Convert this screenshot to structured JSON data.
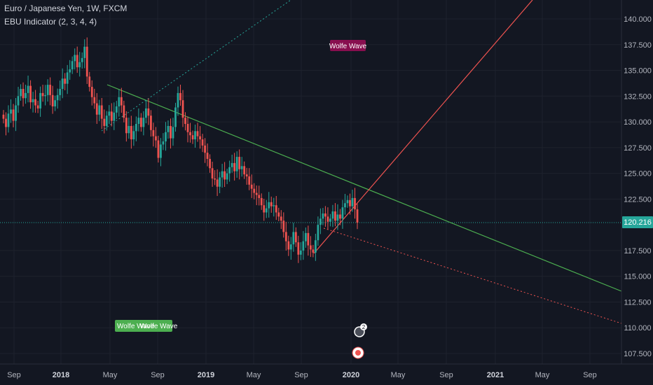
{
  "header": {
    "symbol": "Euro / Japanese Yen, 1W, FXCM",
    "indicator": "EBU Indicator (2, 3, 4, 4)"
  },
  "colors": {
    "background": "#131722",
    "up": "#26a69a",
    "down": "#ef5350",
    "price_line": "#26a69a",
    "green_line": "#4caf50",
    "red_line": "#ef5350",
    "label_red_bg": "#880e4f",
    "label_green_bg": "#4caf50"
  },
  "chart_data": {
    "type": "candlestick",
    "yticks": [
      "140.000",
      "137.500",
      "135.000",
      "132.500",
      "130.000",
      "127.500",
      "125.000",
      "122.500",
      "117.500",
      "115.000",
      "112.500",
      "110.000",
      "107.500"
    ],
    "xticks": [
      {
        "label": "Sep",
        "major": false
      },
      {
        "label": "2018",
        "major": true
      },
      {
        "label": "May",
        "major": false
      },
      {
        "label": "Sep",
        "major": false
      },
      {
        "label": "2019",
        "major": true
      },
      {
        "label": "May",
        "major": false
      },
      {
        "label": "Sep",
        "major": false
      },
      {
        "label": "2020",
        "major": true
      },
      {
        "label": "May",
        "major": false
      },
      {
        "label": "Sep",
        "major": false
      },
      {
        "label": "2021",
        "major": true
      },
      {
        "label": "May",
        "major": false
      },
      {
        "label": "Sep",
        "major": false
      }
    ],
    "last_price": "120.216",
    "ylim": [
      106.5,
      141.5
    ],
    "closes": [
      130.3,
      129.5,
      130.8,
      131.2,
      130.1,
      131.6,
      132.5,
      133.2,
      132.3,
      132.8,
      133.5,
      131.9,
      132.2,
      131.6,
      131.3,
      132.8,
      132.5,
      132.6,
      133.6,
      132.6,
      131.5,
      132.1,
      132.6,
      133.2,
      134.2,
      133.7,
      134.8,
      135.1,
      135.9,
      136.5,
      135.3,
      135.8,
      136.2,
      137.3,
      134.4,
      133.4,
      132.4,
      131.8,
      130.7,
      131.6,
      130.3,
      129.6,
      130.6,
      131.0,
      130.1,
      130.9,
      131.5,
      132.4,
      131.6,
      130.4,
      128.9,
      129.6,
      128.3,
      129.1,
      129.8,
      130.4,
      129.5,
      130.4,
      131.3,
      130.6,
      129.2,
      128.6,
      128.2,
      126.5,
      127.8,
      128.1,
      129.0,
      129.6,
      128.4,
      129.5,
      131.4,
      132.8,
      132.1,
      130.4,
      129.8,
      129.0,
      128.7,
      128.3,
      129.1,
      128.6,
      128.3,
      127.7,
      127.0,
      126.4,
      125.5,
      124.5,
      124.4,
      123.7,
      124.6,
      125.2,
      124.4,
      125.0,
      125.6,
      126.0,
      125.2,
      126.6,
      125.4,
      125.7,
      124.9,
      124.7,
      123.9,
      123.5,
      123.1,
      122.9,
      122.6,
      121.9,
      121.2,
      121.6,
      122.2,
      121.8,
      121.9,
      121.2,
      120.8,
      120.4,
      119.3,
      118.4,
      117.6,
      118.1,
      119.3,
      118.3,
      117.1,
      117.5,
      118.4,
      119.2,
      118.0,
      117.6,
      117.3,
      118.5,
      120.0,
      120.6,
      121.1,
      120.8,
      120.3,
      120.6,
      121.3,
      120.4,
      121.0,
      120.6,
      121.7,
      122.1,
      122.4,
      121.8,
      122.6,
      121.5,
      120.216
    ]
  },
  "annotations": {
    "label_top": "Wolfe Wave",
    "label_bottom_1": "Wolfe Wave",
    "label_bottom_2": "Wolfe Wave",
    "badge_count": "2"
  }
}
